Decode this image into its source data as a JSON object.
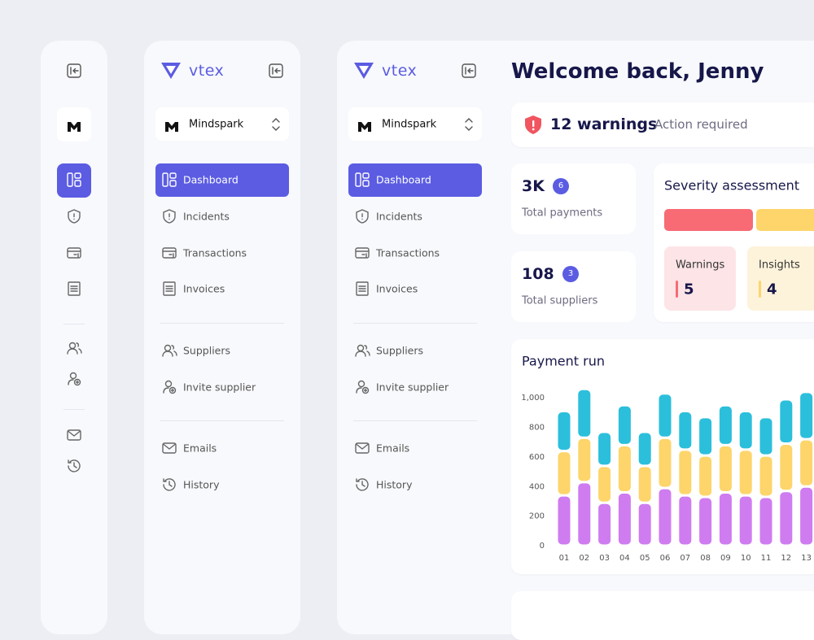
{
  "sidebar": {
    "brand": "vtex",
    "workspace": "Mindspark",
    "nav": [
      "Dashboard",
      "Incidents",
      "Transactions",
      "Invoices",
      "Suppliers",
      "Invite supplier",
      "Emails",
      "History"
    ]
  },
  "main": {
    "title": "Welcome back, Jenny",
    "alert": {
      "count_label": "12 warnings",
      "note": "Action required"
    },
    "stats": [
      {
        "value": "3K",
        "badge": 6,
        "label": "Total payments"
      },
      {
        "value": "108",
        "badge": 3,
        "label": "Total suppliers"
      }
    ],
    "severity": {
      "title": "Severity assessment",
      "items": [
        {
          "label": "Warnings",
          "value": 5,
          "color": "#f86b74"
        },
        {
          "label": "Insights",
          "value": 4,
          "color": "#fdd56b"
        }
      ]
    }
  },
  "chart_data": {
    "type": "bar",
    "stacked": true,
    "title": "Payment run",
    "categories": [
      "01",
      "02",
      "03",
      "04",
      "05",
      "06",
      "07",
      "08",
      "09",
      "10",
      "11",
      "12",
      "13"
    ],
    "series": [
      {
        "color": "#cf7cf0",
        "values": [
          340,
          430,
          290,
          360,
          290,
          390,
          340,
          330,
          360,
          340,
          330,
          370,
          400
        ]
      },
      {
        "color": "#fdd56b",
        "values": [
          300,
          300,
          250,
          320,
          250,
          340,
          310,
          280,
          320,
          310,
          280,
          320,
          320
        ]
      },
      {
        "color": "#2bbfdc",
        "values": [
          270,
          330,
          230,
          270,
          230,
          300,
          260,
          260,
          270,
          260,
          260,
          300,
          320
        ]
      }
    ],
    "ylim": [
      0,
      1100
    ],
    "yticks": [
      0,
      200,
      400,
      600,
      800,
      {
        "value": 1000,
        "label": "1,000"
      }
    ]
  }
}
